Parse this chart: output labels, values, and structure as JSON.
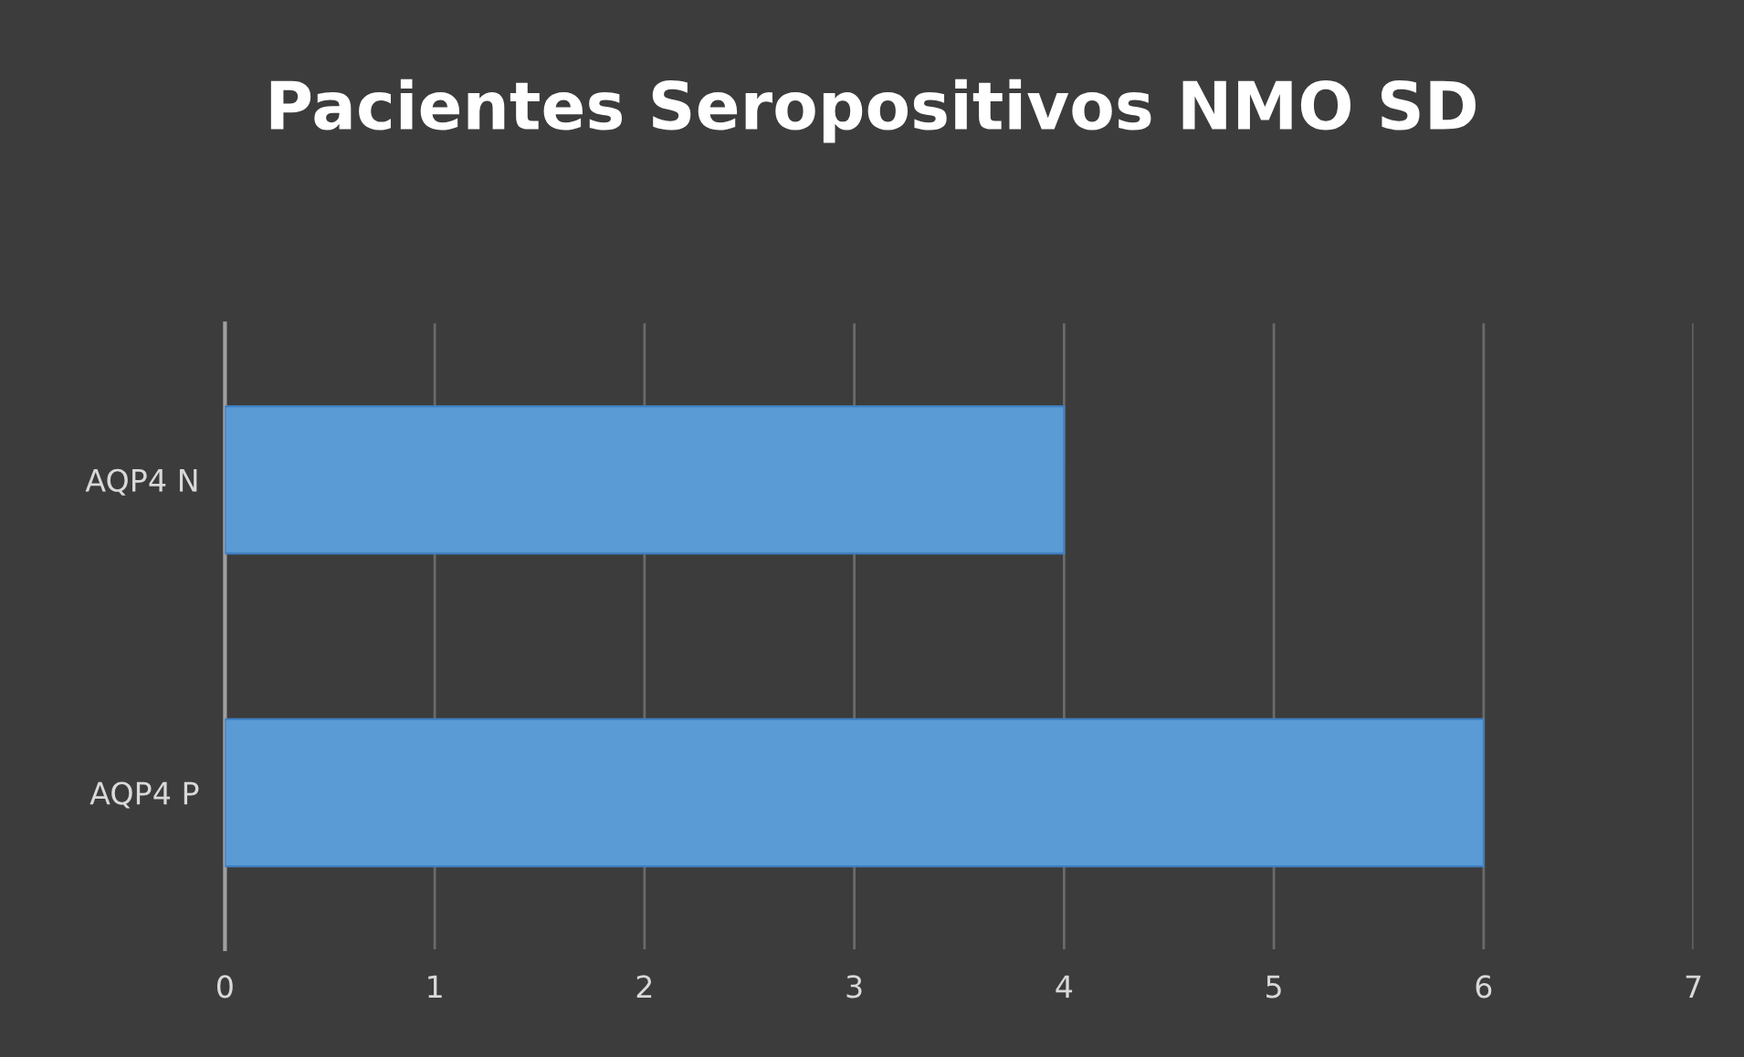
{
  "chart_data": {
    "type": "bar",
    "orientation": "horizontal",
    "title": "Pacientes Seropositivos NMO SD",
    "categories": [
      "AQP4 N",
      "AQP4 P"
    ],
    "values": [
      4,
      6
    ],
    "color": "#5b9bd5",
    "xlim": [
      0,
      7
    ],
    "xticks": [
      0,
      1,
      2,
      3,
      4,
      5,
      6,
      7
    ],
    "grid": "x"
  }
}
